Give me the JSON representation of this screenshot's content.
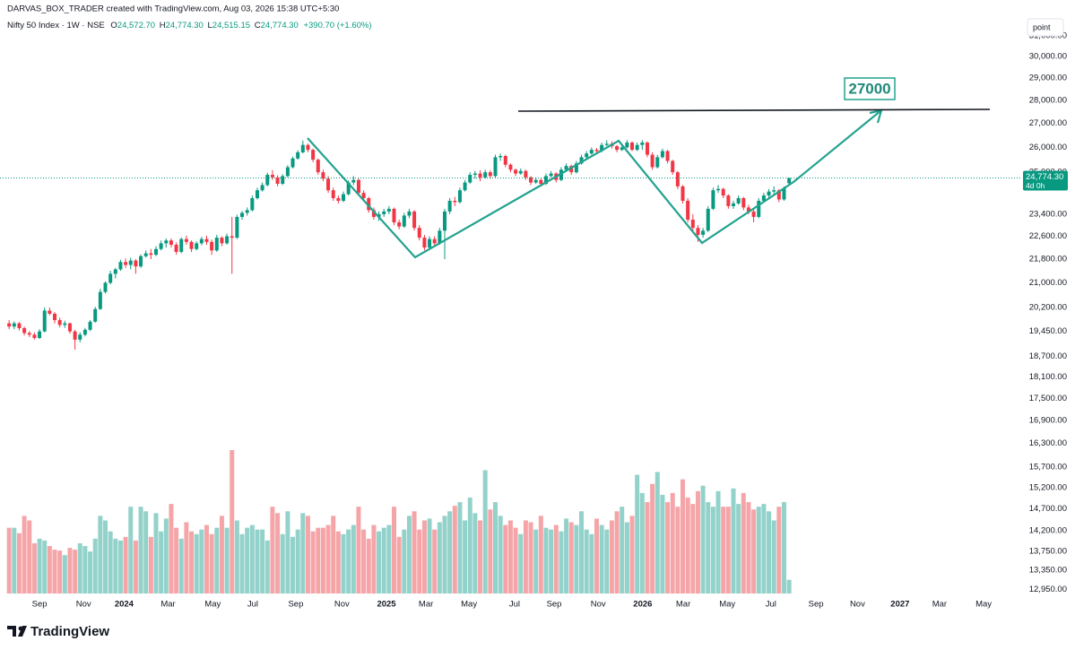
{
  "header": {
    "creator": "DARVAS_BOX_TRADER created with TradingView.com, Aug 03, 2026 15:38 UTC+5:30",
    "symbol": "Nifty 50 Index · 1W · NSE",
    "ohlc_letters": [
      "O",
      "H",
      "L",
      "C"
    ],
    "ohlc_labels": [
      "24,572.70",
      "24,774.30",
      "24,515.15",
      "24,774.30"
    ],
    "change": "+390.70 (+1.60%)"
  },
  "scale_button": "point",
  "brand": "TradingView",
  "annotation": "27000",
  "chart_data": {
    "type": "candlestick",
    "log_scale": true,
    "up_color": "#089981",
    "down_color": "#f23645",
    "volume_up_color": "#93d2ca",
    "volume_down_color": "#f5a5a8",
    "last_price": {
      "value": 24774.3,
      "label": "24,774.30"
    },
    "countdown": "4d 0h",
    "xlim": [
      -1.8,
      200
    ],
    "xticks": [
      {
        "value": 6.0,
        "label": "Sep"
      },
      {
        "value": 14.7,
        "label": "Nov"
      },
      {
        "value": 22.7,
        "label": "2024"
      },
      {
        "value": 31.4,
        "label": "Mar"
      },
      {
        "value": 40.2,
        "label": "May"
      },
      {
        "value": 48.1,
        "label": "Jul"
      },
      {
        "value": 56.6,
        "label": "Sep"
      },
      {
        "value": 65.7,
        "label": "Nov"
      },
      {
        "value": 74.5,
        "label": "2025"
      },
      {
        "value": 82.3,
        "label": "Mar"
      },
      {
        "value": 90.8,
        "label": "May"
      },
      {
        "value": 99.8,
        "label": "Jul"
      },
      {
        "value": 107.6,
        "label": "Sep"
      },
      {
        "value": 116.3,
        "label": "Nov"
      },
      {
        "value": 125.1,
        "label": "2026"
      },
      {
        "value": 133.1,
        "label": "Mar"
      },
      {
        "value": 141.8,
        "label": "May"
      },
      {
        "value": 150.4,
        "label": "Jul"
      },
      {
        "value": 159.3,
        "label": "Sep"
      },
      {
        "value": 167.5,
        "label": "Nov"
      },
      {
        "value": 175.9,
        "label": "2027"
      },
      {
        "value": 183.7,
        "label": "Mar"
      },
      {
        "value": 192.4,
        "label": "May"
      }
    ],
    "ylim": [
      12630,
      31800
    ],
    "yticks": [
      {
        "value": 31000,
        "label": "31,000.00"
      },
      {
        "value": 30000,
        "label": "30,000.00"
      },
      {
        "value": 29000,
        "label": "29,000.00"
      },
      {
        "value": 28000,
        "label": "28,000.00"
      },
      {
        "value": 27000,
        "label": "27,000.00"
      },
      {
        "value": 26000,
        "label": "26,000.00"
      },
      {
        "value": 25000,
        "label": "25,000.00"
      },
      {
        "value": 23400,
        "label": "23,400.00"
      },
      {
        "value": 22600,
        "label": "22,600.00"
      },
      {
        "value": 21800,
        "label": "21,800.00"
      },
      {
        "value": 21000,
        "label": "21,000.00"
      },
      {
        "value": 20200,
        "label": "20,200.00"
      },
      {
        "value": 19450,
        "label": "19,450.00"
      },
      {
        "value": 18700,
        "label": "18,700.00"
      },
      {
        "value": 18100,
        "label": "18,100.00"
      },
      {
        "value": 17500,
        "label": "17,500.00"
      },
      {
        "value": 16900,
        "label": "16,900.00"
      },
      {
        "value": 16300,
        "label": "16,300.00"
      },
      {
        "value": 15700,
        "label": "15,700.00"
      },
      {
        "value": 15200,
        "label": "15,200.00"
      },
      {
        "value": 14700,
        "label": "14,700.00"
      },
      {
        "value": 14200,
        "label": "14,200.00"
      },
      {
        "value": 13750,
        "label": "13,750.00"
      },
      {
        "value": 13350,
        "label": "13,350.00"
      },
      {
        "value": 12950,
        "label": "12,950.00"
      }
    ],
    "ohlc": [
      [
        19700,
        19800,
        19520,
        19600
      ],
      [
        19600,
        19760,
        19520,
        19700
      ],
      [
        19700,
        19740,
        19480,
        19550
      ],
      [
        19550,
        19600,
        19330,
        19400
      ],
      [
        19400,
        19460,
        19280,
        19350
      ],
      [
        19350,
        19420,
        19200,
        19250
      ],
      [
        19250,
        19520,
        19220,
        19450
      ],
      [
        19450,
        20200,
        19420,
        20100
      ],
      [
        20100,
        20200,
        19950,
        20000
      ],
      [
        20000,
        20050,
        19700,
        19800
      ],
      [
        19800,
        19880,
        19580,
        19650
      ],
      [
        19650,
        19780,
        19560,
        19700
      ],
      [
        19700,
        19720,
        19380,
        19450
      ],
      [
        19450,
        19500,
        18900,
        19200
      ],
      [
        19200,
        19420,
        19120,
        19350
      ],
      [
        19350,
        19560,
        19300,
        19500
      ],
      [
        19500,
        19800,
        19460,
        19750
      ],
      [
        19750,
        20220,
        19720,
        20150
      ],
      [
        20150,
        20800,
        20120,
        20700
      ],
      [
        20700,
        21050,
        20650,
        21000
      ],
      [
        21000,
        21400,
        20950,
        21300
      ],
      [
        21300,
        21500,
        21150,
        21450
      ],
      [
        21450,
        21780,
        21400,
        21700
      ],
      [
        21700,
        21820,
        21500,
        21600
      ],
      [
        21600,
        21850,
        21450,
        21750
      ],
      [
        21750,
        21800,
        21300,
        21550
      ],
      [
        21550,
        21960,
        21500,
        21900
      ],
      [
        21900,
        22100,
        21850,
        22000
      ],
      [
        22000,
        22150,
        21800,
        21950
      ],
      [
        21950,
        22250,
        21900,
        22150
      ],
      [
        22150,
        22450,
        22100,
        22350
      ],
      [
        22350,
        22520,
        22200,
        22450
      ],
      [
        22450,
        22520,
        22200,
        22300
      ],
      [
        22300,
        22380,
        21950,
        22050
      ],
      [
        22050,
        22560,
        22000,
        22500
      ],
      [
        22500,
        22620,
        22300,
        22400
      ],
      [
        22400,
        22450,
        22050,
        22150
      ],
      [
        22150,
        22420,
        22100,
        22350
      ],
      [
        22350,
        22580,
        22280,
        22500
      ],
      [
        22500,
        22620,
        22300,
        22400
      ],
      [
        22400,
        22480,
        21950,
        22100
      ],
      [
        22100,
        22650,
        22050,
        22550
      ],
      [
        22550,
        22600,
        22250,
        22350
      ],
      [
        22350,
        22700,
        22300,
        22600
      ],
      [
        22600,
        23300,
        21300,
        22550
      ],
      [
        22550,
        23380,
        22500,
        23300
      ],
      [
        23300,
        23520,
        23200,
        23450
      ],
      [
        23450,
        23650,
        23350,
        23550
      ],
      [
        23550,
        24100,
        23500,
        24000
      ],
      [
        24000,
        24400,
        23950,
        24300
      ],
      [
        24300,
        24600,
        24250,
        24500
      ],
      [
        24500,
        24980,
        24450,
        24900
      ],
      [
        24900,
        25080,
        24700,
        24800
      ],
      [
        24800,
        24880,
        24450,
        24550
      ],
      [
        24550,
        24920,
        24500,
        24850
      ],
      [
        24850,
        25280,
        24800,
        25200
      ],
      [
        25200,
        25620,
        25150,
        25550
      ],
      [
        25550,
        25880,
        25500,
        25800
      ],
      [
        25800,
        26280,
        25750,
        26100
      ],
      [
        26100,
        26150,
        25800,
        25900
      ],
      [
        25900,
        25950,
        25400,
        25500
      ],
      [
        25500,
        25550,
        24900,
        25000
      ],
      [
        25000,
        25100,
        24650,
        24750
      ],
      [
        24750,
        24850,
        24200,
        24300
      ],
      [
        24300,
        24400,
        23900,
        24000
      ],
      [
        24000,
        24100,
        23800,
        23900
      ],
      [
        23900,
        24250,
        23850,
        24150
      ],
      [
        24150,
        24680,
        24100,
        24600
      ],
      [
        24600,
        24850,
        24500,
        24700
      ],
      [
        24700,
        24750,
        24100,
        24200
      ],
      [
        24200,
        24300,
        23900,
        24000
      ],
      [
        24000,
        24050,
        23450,
        23550
      ],
      [
        23550,
        23650,
        23200,
        23300
      ],
      [
        23300,
        23500,
        23150,
        23400
      ],
      [
        23400,
        23600,
        23300,
        23500
      ],
      [
        23500,
        23700,
        23400,
        23600
      ],
      [
        23600,
        23650,
        23000,
        23100
      ],
      [
        23100,
        23200,
        22850,
        22950
      ],
      [
        22950,
        23450,
        22900,
        23350
      ],
      [
        23350,
        23600,
        23250,
        23500
      ],
      [
        23500,
        23550,
        22800,
        22900
      ],
      [
        22900,
        23000,
        22450,
        22550
      ],
      [
        22550,
        22650,
        22100,
        22200
      ],
      [
        22200,
        22600,
        22150,
        22500
      ],
      [
        22500,
        22600,
        22250,
        22350
      ],
      [
        22350,
        22900,
        22300,
        22800
      ],
      [
        22800,
        23600,
        21800,
        23500
      ],
      [
        23500,
        24000,
        23400,
        23900
      ],
      [
        23900,
        24050,
        23700,
        23850
      ],
      [
        23850,
        24400,
        23800,
        24300
      ],
      [
        24300,
        24700,
        24250,
        24600
      ],
      [
        24600,
        25000,
        24550,
        24900
      ],
      [
        24900,
        25050,
        24750,
        24950
      ],
      [
        24950,
        25080,
        24650,
        24800
      ],
      [
        24800,
        25100,
        24750,
        25000
      ],
      [
        25000,
        25080,
        24750,
        24850
      ],
      [
        24850,
        25700,
        24800,
        25600
      ],
      [
        25600,
        25750,
        25450,
        25650
      ],
      [
        25650,
        25700,
        25200,
        25300
      ],
      [
        25300,
        25350,
        25000,
        25100
      ],
      [
        25100,
        25150,
        24850,
        24950
      ],
      [
        24950,
        25150,
        24900,
        25050
      ],
      [
        25050,
        25100,
        24700,
        24800
      ],
      [
        24800,
        24850,
        24500,
        24600
      ],
      [
        24600,
        24800,
        24550,
        24700
      ],
      [
        24700,
        24750,
        24450,
        24550
      ],
      [
        24550,
        24950,
        24500,
        24850
      ],
      [
        24850,
        25050,
        24800,
        24950
      ],
      [
        24950,
        25000,
        24600,
        24700
      ],
      [
        24700,
        25200,
        24650,
        25100
      ],
      [
        25100,
        25350,
        25050,
        25250
      ],
      [
        25250,
        25300,
        24900,
        25000
      ],
      [
        25000,
        25450,
        24950,
        25350
      ],
      [
        25350,
        25700,
        25300,
        25600
      ],
      [
        25600,
        25850,
        25550,
        25750
      ],
      [
        25750,
        26000,
        25700,
        25900
      ],
      [
        25900,
        25980,
        25750,
        25850
      ],
      [
        25850,
        26200,
        25800,
        26100
      ],
      [
        26100,
        26300,
        26050,
        26150
      ],
      [
        26150,
        26250,
        25950,
        26050
      ],
      [
        26050,
        26100,
        25800,
        25900
      ],
      [
        25900,
        26100,
        25850,
        26000
      ],
      [
        26000,
        26300,
        25950,
        26200
      ],
      [
        26200,
        26250,
        25850,
        25900
      ],
      [
        25900,
        26200,
        25850,
        26100
      ],
      [
        26100,
        26300,
        25900,
        26200
      ],
      [
        26200,
        26250,
        25600,
        25700
      ],
      [
        25700,
        25800,
        25100,
        25200
      ],
      [
        25200,
        25700,
        25150,
        25600
      ],
      [
        25600,
        25950,
        25550,
        25850
      ],
      [
        25850,
        25900,
        25350,
        25450
      ],
      [
        25450,
        25500,
        24900,
        25000
      ],
      [
        25000,
        25050,
        24350,
        24450
      ],
      [
        24450,
        24500,
        23800,
        23900
      ],
      [
        23900,
        24000,
        23100,
        23200
      ],
      [
        23200,
        23400,
        22800,
        22900
      ],
      [
        22900,
        23000,
        22400,
        22650
      ],
      [
        22650,
        22900,
        22550,
        22800
      ],
      [
        22800,
        23700,
        22750,
        23600
      ],
      [
        23600,
        24400,
        23550,
        24300
      ],
      [
        24300,
        24500,
        24200,
        24350
      ],
      [
        24350,
        24400,
        24000,
        24100
      ],
      [
        24100,
        24150,
        23600,
        23700
      ],
      [
        23700,
        23900,
        23600,
        23800
      ],
      [
        23800,
        24100,
        23750,
        24000
      ],
      [
        24000,
        24050,
        23550,
        23650
      ],
      [
        23650,
        23750,
        23400,
        23500
      ],
      [
        23500,
        23600,
        23100,
        23300
      ],
      [
        23300,
        24000,
        23250,
        23900
      ],
      [
        23900,
        24200,
        23850,
        24100
      ],
      [
        24100,
        24350,
        24000,
        24250
      ],
      [
        24250,
        24450,
        24150,
        24300
      ],
      [
        24300,
        24350,
        23850,
        23950
      ],
      [
        23950,
        24450,
        23900,
        24383.6
      ],
      [
        24572.7,
        24774.3,
        24515.15,
        24774.3
      ]
    ],
    "volume": [
      72,
      72,
      66,
      85,
      80,
      55,
      60,
      58,
      52,
      48,
      47,
      42,
      50,
      48,
      55,
      52,
      46,
      60,
      85,
      80,
      68,
      60,
      58,
      62,
      95,
      58,
      95,
      90,
      62,
      88,
      68,
      82,
      98,
      72,
      60,
      78,
      68,
      65,
      70,
      75,
      65,
      72,
      85,
      72,
      157,
      80,
      65,
      72,
      75,
      70,
      70,
      58,
      95,
      88,
      65,
      90,
      62,
      70,
      88,
      85,
      68,
      72,
      72,
      75,
      85,
      68,
      65,
      70,
      75,
      95,
      70,
      60,
      75,
      68,
      72,
      75,
      95,
      62,
      70,
      85,
      90,
      70,
      80,
      82,
      70,
      78,
      85,
      90,
      96,
      100,
      80,
      105,
      88,
      80,
      135,
      92,
      100,
      85,
      75,
      80,
      72,
      65,
      80,
      78,
      70,
      85,
      72,
      70,
      75,
      68,
      82,
      78,
      75,
      90,
      70,
      65,
      82,
      75,
      70,
      80,
      90,
      95,
      78,
      85,
      130,
      110,
      100,
      120,
      133,
      108,
      100,
      110,
      95,
      125,
      105,
      98,
      112,
      118,
      100,
      95,
      112,
      95,
      95,
      115,
      98,
      110,
      100,
      92,
      95,
      98,
      90,
      80,
      95,
      100,
      15
    ]
  }
}
